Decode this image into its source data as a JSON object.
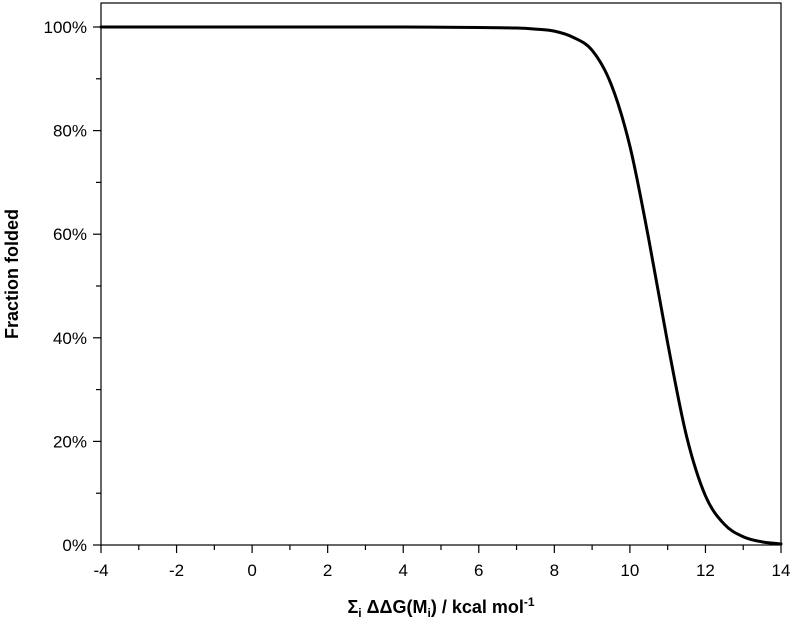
{
  "chart_data": {
    "type": "line",
    "title": "",
    "xlabel": "Σi ΔΔG(Mi) / kcal mol-1",
    "xlabel_parts": {
      "sigma": "Σ",
      "sub1": "i",
      "mid": " ΔΔG(M",
      "sub2": "i",
      "post": ") / kcal mol",
      "sup": "-1"
    },
    "ylabel": "Fraction folded",
    "xlim": [
      -4,
      14
    ],
    "ylim": [
      0,
      100
    ],
    "x_ticks": [
      -4,
      -2,
      0,
      2,
      4,
      6,
      8,
      10,
      12,
      14
    ],
    "x_tick_labels": [
      "-4",
      "-2",
      "0",
      "2",
      "4",
      "6",
      "8",
      "10",
      "12",
      "14"
    ],
    "y_ticks": [
      0,
      20,
      40,
      60,
      80,
      100
    ],
    "y_tick_labels": [
      "0%",
      "20%",
      "40%",
      "60%",
      "80%",
      "100%"
    ],
    "grid": false,
    "line_color": "#000000",
    "series": [
      {
        "x": [
          -4,
          -2,
          0,
          2,
          4,
          6,
          7,
          7.5,
          8,
          8.5,
          9,
          9.5,
          10,
          10.5,
          11,
          11.5,
          12,
          12.5,
          13,
          13.5,
          14
        ],
        "y": [
          100,
          100,
          100,
          100,
          100,
          99.9,
          99.8,
          99.6,
          99.2,
          98,
          95.5,
          89,
          77,
          59,
          39,
          21,
          9.5,
          4,
          1.6,
          0.6,
          0.2
        ]
      }
    ]
  }
}
